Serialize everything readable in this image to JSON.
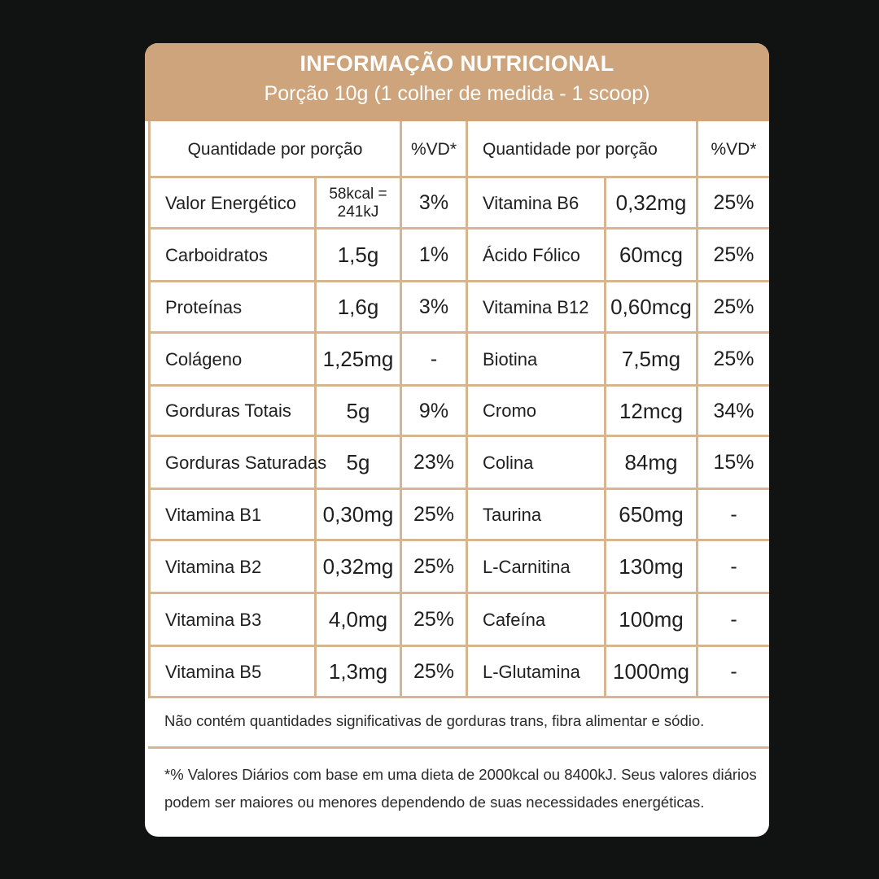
{
  "header": {
    "title": "INFORMAÇÃO NUTRICIONAL",
    "subtitle": "Porção 10g (1 colher de medida - 1 scoop)"
  },
  "table": {
    "col_headers": {
      "left_quantity": "Quantidade por porção",
      "left_vd": "%VD*",
      "right_quantity": "Quantidade por porção",
      "right_vd": "%VD*"
    },
    "left": [
      {
        "name": "Valor Energético",
        "value": "58kcal =\n241kJ",
        "vd": "3%"
      },
      {
        "name": "Carboidratos",
        "value": "1,5g",
        "vd": "1%"
      },
      {
        "name": "Proteínas",
        "value": "1,6g",
        "vd": "3%"
      },
      {
        "name": "Colágeno",
        "value": "1,25mg",
        "vd": "-"
      },
      {
        "name": "Gorduras Totais",
        "value": "5g",
        "vd": "9%"
      },
      {
        "name": "Gorduras Saturadas",
        "value": "5g",
        "vd": "23%"
      },
      {
        "name": "Vitamina B1",
        "value": "0,30mg",
        "vd": "25%"
      },
      {
        "name": "Vitamina B2",
        "value": "0,32mg",
        "vd": "25%"
      },
      {
        "name": "Vitamina B3",
        "value": "4,0mg",
        "vd": "25%"
      },
      {
        "name": "Vitamina B5",
        "value": "1,3mg",
        "vd": "25%"
      }
    ],
    "right": [
      {
        "name": "Vitamina B6",
        "value": "0,32mg",
        "vd": "25%"
      },
      {
        "name": "Ácido Fólico",
        "value": "60mcg",
        "vd": "25%"
      },
      {
        "name": "Vitamina B12",
        "value": "0,60mcg",
        "vd": "25%"
      },
      {
        "name": "Biotina",
        "value": "7,5mg",
        "vd": "25%"
      },
      {
        "name": "Cromo",
        "value": "12mcg",
        "vd": "34%"
      },
      {
        "name": "Colina",
        "value": "84mg",
        "vd": "15%"
      },
      {
        "name": "Taurina",
        "value": "650mg",
        "vd": "-"
      },
      {
        "name": "L-Carnitina",
        "value": "130mg",
        "vd": "-"
      },
      {
        "name": "Cafeína",
        "value": "100mg",
        "vd": "-"
      },
      {
        "name": "L-Glutamina",
        "value": "1000mg",
        "vd": "-"
      }
    ]
  },
  "notes": {
    "trans": "Não contém quantidades significativas de gorduras trans,  fibra alimentar e sódio.",
    "vd": "*% Valores Diários com base em uma dieta de 2000kcal ou  8400kJ. Seus valores diários podem ser maiores ou menores  dependendo de suas necessidades energéticas."
  },
  "colors": {
    "background": "#111312",
    "header": "#cda47b",
    "grid": "#d7b591"
  }
}
